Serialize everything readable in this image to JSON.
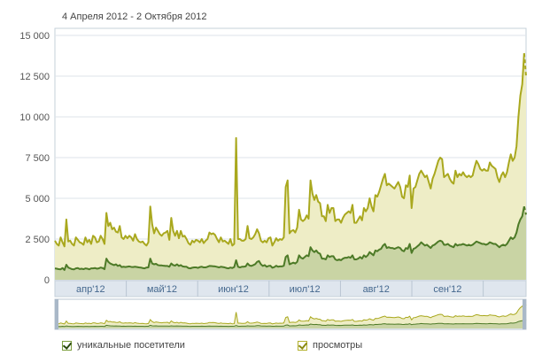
{
  "header": {
    "date_range": "4 Апреля 2012 - 2 Октября 2012"
  },
  "legend": {
    "unique_label": "уникальные посетители",
    "views_label": "просмотры",
    "unique_checked": true,
    "views_checked": true
  },
  "colors": {
    "unique_line": "#4d7a27",
    "unique_fill": "#c9d4a4",
    "views_line": "#a9a81e",
    "views_fill": "#eeedc6",
    "grid": "#dde3ea",
    "axis_band": "#dfe6ee"
  },
  "chart_data": {
    "type": "area",
    "title": "",
    "xlabel": "",
    "ylabel": "",
    "ylim": [
      0,
      15000
    ],
    "yticks": [
      "0",
      "2 500",
      "5 000",
      "7 500",
      "10 000",
      "12 500",
      "15 000"
    ],
    "ytick_values": [
      0,
      2500,
      5000,
      7500,
      10000,
      12500,
      15000
    ],
    "month_labels": [
      "апр'12",
      "май'12",
      "июн'12",
      "июл'12",
      "авг'12",
      "сен'12"
    ],
    "series": [
      {
        "name": "просмотры",
        "values": [
          2400,
          2200,
          2100,
          2600,
          2300,
          2050,
          3700,
          2350,
          2400,
          2200,
          2100,
          2600,
          2450,
          2300,
          2250,
          2150,
          2600,
          2300,
          2450,
          2200,
          2700,
          2600,
          2300,
          2350,
          2700,
          2500,
          2200,
          4100,
          3300,
          3500,
          3100,
          3200,
          2950,
          2900,
          3300,
          2600,
          2500,
          2700,
          2550,
          2700,
          2600,
          2400,
          2800,
          2500,
          2350,
          2300,
          2350,
          2200,
          2100,
          2300,
          4500,
          3400,
          2850,
          3200,
          3000,
          2800,
          2700,
          2850,
          2900,
          3000,
          2450,
          3800,
          3000,
          2700,
          3000,
          2550,
          3000,
          2650,
          2700,
          2500,
          2250,
          2150,
          2400,
          2300,
          2450,
          2400,
          2300,
          2500,
          2250,
          2400,
          2500,
          2900,
          2800,
          2850,
          2750,
          2500,
          2300,
          2600,
          2350,
          2400,
          2300,
          2200,
          2500,
          2100,
          2200,
          8700,
          2500,
          2500,
          2400,
          2400,
          2500,
          3300,
          2550,
          2500,
          2600,
          2800,
          3100,
          2850,
          2400,
          2300,
          2400,
          2300,
          2550,
          2600,
          2100,
          2300,
          2550,
          2400,
          2500,
          2450,
          2600,
          5700,
          6100,
          2850,
          3000,
          3050,
          2900,
          3200,
          4300,
          3700,
          3600,
          3700,
          3950,
          3750,
          6100,
          5300,
          4900,
          5200,
          4800,
          4700,
          3900,
          3900,
          3600,
          4600,
          4100,
          4400,
          4400,
          3600,
          3700,
          3700,
          3500,
          3800,
          4000,
          4100,
          4200,
          4100,
          4600,
          3500,
          3500,
          3700,
          3900,
          3650,
          4400,
          4200,
          4400,
          5000,
          4500,
          4200,
          5200,
          5100,
          5400,
          5800,
          6200,
          6500,
          5800,
          5900,
          5800,
          5700,
          5600,
          5800,
          6000,
          5700,
          5100,
          5000,
          5800,
          5700,
          6400,
          4400,
          5600,
          5700,
          6100,
          6500,
          6700,
          6500,
          6300,
          6400,
          6000,
          5600,
          6200,
          6500,
          6900,
          7300,
          7500,
          7400,
          6300,
          6400,
          6500,
          6200,
          6000,
          5900,
          6700,
          6300,
          6500,
          6400,
          6600,
          6400,
          6300,
          6400,
          6300,
          6400,
          6900,
          7300,
          7100,
          6800,
          6700,
          6800,
          6700,
          6700,
          7200,
          7000,
          6900,
          6800,
          6300,
          6000,
          6400,
          6600,
          6300,
          6600,
          7200,
          7700,
          7300,
          7500,
          8200,
          10000,
          11300,
          12000,
          13900,
          12500
        ]
      },
      {
        "name": "уникальные посетители",
        "values": [
          700,
          680,
          650,
          640,
          720,
          600,
          920,
          750,
          700,
          650,
          640,
          700,
          720,
          660,
          680,
          650,
          700,
          680,
          640,
          700,
          700,
          720,
          680,
          700,
          750,
          720,
          650,
          1300,
          1100,
          1000,
          950,
          900,
          950,
          850,
          900,
          780,
          800,
          780,
          800,
          820,
          790,
          780,
          800,
          780,
          760,
          750,
          720,
          700,
          750,
          760,
          1300,
          1000,
          950,
          980,
          900,
          880,
          880,
          860,
          850,
          850,
          800,
          1000,
          900,
          870,
          950,
          850,
          900,
          820,
          800,
          800,
          720,
          700,
          740,
          760,
          760,
          730,
          780,
          800,
          760,
          760,
          800,
          850,
          840,
          830,
          820,
          790,
          760,
          800,
          780,
          760,
          720,
          700,
          750,
          720,
          780,
          1200,
          800,
          760,
          800,
          800,
          820,
          1000,
          880,
          850,
          900,
          960,
          1100,
          1150,
          950,
          850,
          900,
          800,
          850,
          860,
          740,
          780,
          860,
          800,
          820,
          820,
          860,
          1400,
          1500,
          950,
          1000,
          1050,
          1000,
          1100,
          1500,
          1350,
          1300,
          1400,
          1500,
          1450,
          2000,
          1800,
          1700,
          1800,
          1650,
          1600,
          1300,
          1300,
          1250,
          1500,
          1400,
          1450,
          1450,
          1250,
          1200,
          1250,
          1200,
          1300,
          1350,
          1350,
          1400,
          1350,
          1500,
          1250,
          1250,
          1300,
          1400,
          1300,
          1500,
          1400,
          1500,
          1700,
          1600,
          1500,
          1800,
          1750,
          1850,
          1900,
          2100,
          2200,
          1950,
          2000,
          1950,
          1950,
          1900,
          1950,
          2000,
          1950,
          1800,
          1750,
          1950,
          1900,
          2200,
          1650,
          1900,
          1950,
          2050,
          2150,
          2300,
          2200,
          2100,
          2150,
          2050,
          1950,
          2100,
          2150,
          2250,
          2350,
          2400,
          2350,
          2150,
          2150,
          2200,
          2100,
          2050,
          2000,
          2200,
          2100,
          2150,
          2150,
          2200,
          2150,
          2100,
          2150,
          2100,
          2150,
          2250,
          2350,
          2300,
          2250,
          2200,
          2200,
          2150,
          2200,
          2300,
          2250,
          2200,
          2200,
          2100,
          2000,
          2100,
          2150,
          2100,
          2200,
          2400,
          2600,
          2500,
          2600,
          2900,
          3400,
          3700,
          3900,
          4500,
          4000
        ]
      }
    ]
  }
}
